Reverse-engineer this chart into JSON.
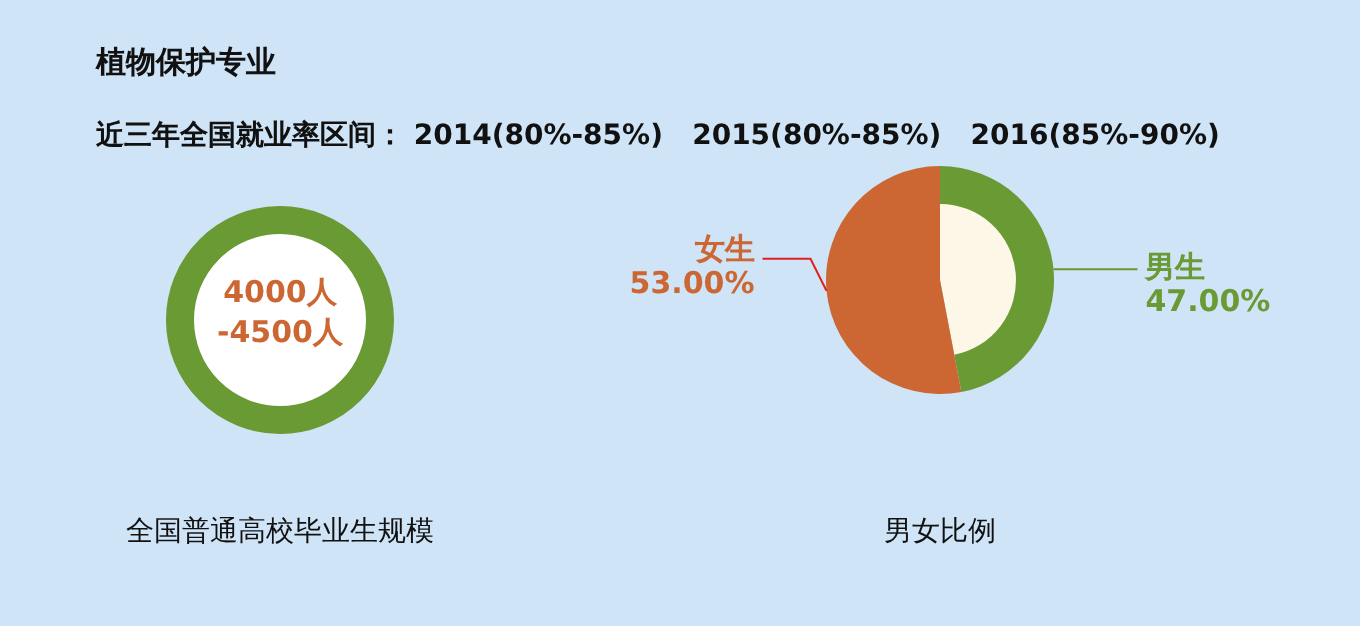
{
  "chart_data": [
    {
      "type": "other",
      "title": "植物保护专业",
      "subtitle": "近三年全国就业率区间： 2014(80%-85%)   2015(80%-85%)   2016(85%-90%)",
      "annotations": [
        "4000人-4500人"
      ],
      "xlabel": "全国普通高校毕业生规模",
      "color": "#6a9a34"
    },
    {
      "type": "pie",
      "categories": [
        "男生",
        "女生"
      ],
      "values": [
        47,
        53
      ],
      "colors": [
        "#6a9a34",
        "#cc6633"
      ],
      "value_labels": [
        "47.00%",
        "53.00%"
      ],
      "xlabel": "男女比例"
    }
  ]
}
